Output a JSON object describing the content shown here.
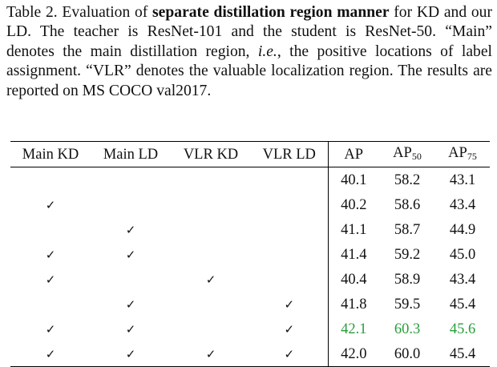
{
  "caption": {
    "prefix": "Table 2.  Evaluation of ",
    "bold": "separate distillation region manner",
    "part2": " for KD and our LD. The teacher is ResNet-101 and the student is ResNet-50.  “Main” denotes the main distillation region, ",
    "italic": "i.e.",
    "part3": ", the positive locations of label assignment.  “VLR” denotes the valuable localization region.  The results are reported on MS COCO val2017."
  },
  "table": {
    "headers": {
      "main_kd": "Main KD",
      "main_ld": "Main LD",
      "vlr_kd": "VLR KD",
      "vlr_ld": "VLR LD",
      "ap": "AP",
      "ap50_base": "AP",
      "ap50_sub": "50",
      "ap75_base": "AP",
      "ap75_sub": "75"
    },
    "check_symbol": "✓",
    "best_color": "#2a9d3d",
    "rows": [
      {
        "main_kd": "",
        "main_ld": "",
        "vlr_kd": "",
        "vlr_ld": "",
        "ap": "40.1",
        "ap50": "58.2",
        "ap75": "43.1"
      },
      {
        "main_kd": "✓",
        "main_ld": "",
        "vlr_kd": "",
        "vlr_ld": "",
        "ap": "40.2",
        "ap50": "58.6",
        "ap75": "43.4"
      },
      {
        "main_kd": "",
        "main_ld": "✓",
        "vlr_kd": "",
        "vlr_ld": "",
        "ap": "41.1",
        "ap50": "58.7",
        "ap75": "44.9"
      },
      {
        "main_kd": "✓",
        "main_ld": "✓",
        "vlr_kd": "",
        "vlr_ld": "",
        "ap": "41.4",
        "ap50": "59.2",
        "ap75": "45.0"
      },
      {
        "main_kd": "✓",
        "main_ld": "",
        "vlr_kd": "✓",
        "vlr_ld": "",
        "ap": "40.4",
        "ap50": "58.9",
        "ap75": "43.4"
      },
      {
        "main_kd": "",
        "main_ld": "✓",
        "vlr_kd": "",
        "vlr_ld": "✓",
        "ap": "41.8",
        "ap50": "59.5",
        "ap75": "45.4"
      },
      {
        "main_kd": "✓",
        "main_ld": "✓",
        "vlr_kd": "",
        "vlr_ld": "✓",
        "ap": "42.1",
        "ap50": "60.3",
        "ap75": "45.6",
        "best": true
      },
      {
        "main_kd": "✓",
        "main_ld": "✓",
        "vlr_kd": "✓",
        "vlr_ld": "✓",
        "ap": "42.0",
        "ap50": "60.0",
        "ap75": "45.4"
      }
    ]
  }
}
